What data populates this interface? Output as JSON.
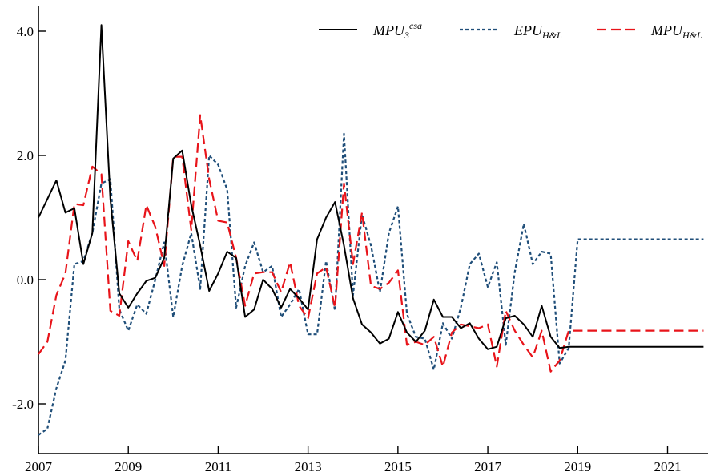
{
  "chart_data": {
    "type": "line",
    "title": "",
    "xlabel": "",
    "ylabel": "",
    "xlim": [
      2007,
      2021.9
    ],
    "ylim": [
      -2.8,
      4.4
    ],
    "x_ticks": [
      2007,
      2009,
      2011,
      2013,
      2015,
      2017,
      2019,
      2021
    ],
    "x_tick_labels": [
      "2007",
      "2009",
      "2011",
      "2013",
      "2015",
      "2017",
      "2019",
      "2021"
    ],
    "y_ticks": [
      -2,
      0,
      2,
      4
    ],
    "y_tick_labels": [
      "-2.0",
      "0.0",
      "2.0",
      "4.0"
    ],
    "grid": false,
    "legend_position": "top-right",
    "x": [
      2007.0,
      2007.2,
      2007.4,
      2007.6,
      2007.8,
      2008.0,
      2008.2,
      2008.4,
      2008.6,
      2008.8,
      2009.0,
      2009.2,
      2009.4,
      2009.6,
      2009.8,
      2010.0,
      2010.2,
      2010.4,
      2010.6,
      2010.8,
      2011.0,
      2011.2,
      2011.4,
      2011.6,
      2011.8,
      2012.0,
      2012.2,
      2012.4,
      2012.6,
      2012.8,
      2013.0,
      2013.2,
      2013.4,
      2013.6,
      2013.8,
      2014.0,
      2014.2,
      2014.4,
      2014.6,
      2014.8,
      2015.0,
      2015.2,
      2015.4,
      2015.6,
      2015.8,
      2016.0,
      2016.2,
      2016.4,
      2016.6,
      2016.8,
      2017.0,
      2017.2,
      2017.4,
      2017.6,
      2017.8,
      2018.0,
      2018.2,
      2018.4,
      2018.6,
      2018.8,
      2019.0,
      2019.2,
      2019.4,
      2019.6,
      2019.8,
      2020.0,
      2020.2,
      2020.4,
      2020.6,
      2020.8,
      2021.0,
      2021.2,
      2021.4,
      2021.6,
      2021.8
    ],
    "series": [
      {
        "name": "MPU",
        "name_sub": "3",
        "name_sup": "csa",
        "color": "#000000",
        "dash": "solid",
        "values": [
          1.0,
          1.3,
          1.6,
          1.08,
          1.15,
          0.25,
          0.75,
          4.1,
          1.3,
          -0.22,
          -0.45,
          -0.22,
          -0.02,
          0.03,
          0.35,
          1.95,
          2.08,
          1.2,
          0.55,
          -0.18,
          0.1,
          0.45,
          0.35,
          -0.6,
          -0.48,
          0.0,
          -0.15,
          -0.45,
          -0.15,
          -0.3,
          -0.48,
          0.65,
          1.0,
          1.25,
          0.55,
          -0.3,
          -0.72,
          -0.85,
          -1.03,
          -0.95,
          -0.52,
          -0.85,
          -1.0,
          -0.82,
          -0.32,
          -0.6,
          -0.6,
          -0.78,
          -0.7,
          -0.95,
          -1.12,
          -1.08,
          -0.62,
          -0.58,
          -0.72,
          -0.92,
          -0.42,
          -0.92,
          -1.1,
          -1.08,
          -1.08,
          -1.08,
          -1.08,
          -1.08,
          -1.08,
          -1.08,
          -1.08,
          -1.08,
          -1.08,
          -1.08,
          -1.08,
          -1.08,
          -1.08,
          -1.08,
          -1.08
        ]
      },
      {
        "name": "EPU",
        "name_sub": "H&L",
        "name_sup": "",
        "color": "#1f4e79",
        "dash": "dotted",
        "values": [
          -2.5,
          -2.4,
          -1.75,
          -1.3,
          0.25,
          0.3,
          0.75,
          1.55,
          1.62,
          -0.48,
          -0.82,
          -0.4,
          -0.55,
          0.0,
          0.6,
          -0.6,
          0.22,
          0.75,
          -0.15,
          2.0,
          1.85,
          1.45,
          -0.45,
          0.22,
          0.6,
          0.12,
          0.22,
          -0.6,
          -0.4,
          -0.15,
          -0.88,
          -0.88,
          0.3,
          -0.5,
          2.35,
          -0.25,
          1.05,
          0.55,
          -0.2,
          0.75,
          1.18,
          -0.55,
          -0.92,
          -0.95,
          -1.45,
          -0.7,
          -0.95,
          -0.45,
          0.25,
          0.42,
          -0.12,
          0.28,
          -1.05,
          0.12,
          0.9,
          0.25,
          0.45,
          0.42,
          -1.35,
          -1.1,
          0.65,
          0.65,
          0.65,
          0.65,
          0.65,
          0.65,
          0.65,
          0.65,
          0.65,
          0.65,
          0.65,
          0.65,
          0.65,
          0.65,
          0.65
        ]
      },
      {
        "name": "MPU",
        "name_sub": "H&L",
        "name_sup": "",
        "color": "#e8141a",
        "dash": "dashed",
        "values": [
          -1.2,
          -1.0,
          -0.25,
          0.1,
          1.22,
          1.2,
          1.82,
          1.7,
          -0.5,
          -0.58,
          0.62,
          0.3,
          1.2,
          0.85,
          0.22,
          1.98,
          1.98,
          0.8,
          2.65,
          1.62,
          0.95,
          0.92,
          0.35,
          -0.42,
          0.1,
          0.12,
          0.12,
          -0.2,
          0.28,
          -0.42,
          -0.62,
          0.1,
          0.2,
          -0.45,
          1.55,
          0.25,
          1.08,
          -0.1,
          -0.15,
          -0.05,
          0.15,
          -1.05,
          -1.0,
          -1.05,
          -0.92,
          -1.4,
          -0.85,
          -0.72,
          -0.75,
          -0.78,
          -0.72,
          -1.4,
          -0.5,
          -0.82,
          -1.05,
          -1.25,
          -0.82,
          -1.48,
          -1.3,
          -0.82,
          -0.82,
          -0.82,
          -0.82,
          -0.82,
          -0.82,
          -0.82,
          -0.82,
          -0.82,
          -0.82,
          -0.82,
          -0.82,
          -0.82,
          -0.82,
          -0.82,
          -0.82
        ]
      }
    ]
  }
}
